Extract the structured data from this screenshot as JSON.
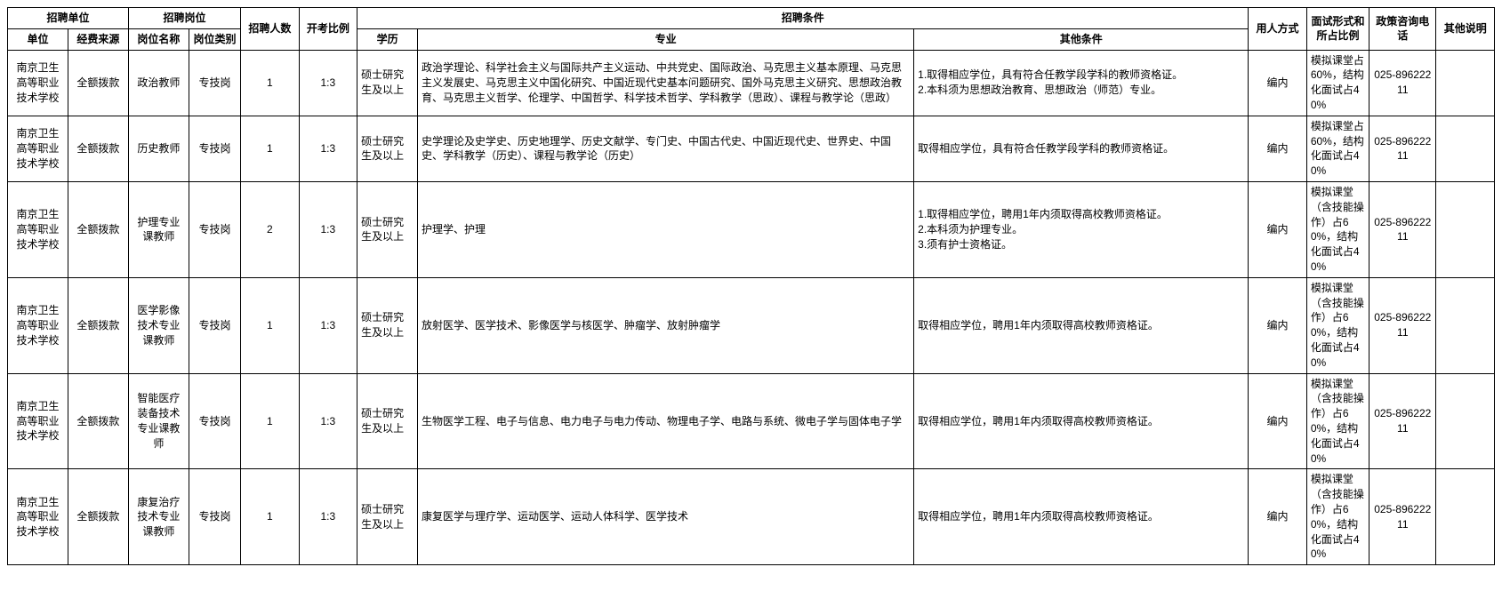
{
  "table": {
    "header": {
      "group_unit": "招聘单位",
      "group_position": "招聘岗位",
      "group_condition": "招聘条件",
      "unit": "单位",
      "funding": "经费来源",
      "position_name": "岗位名称",
      "position_type": "岗位类别",
      "count": "招聘人数",
      "ratio": "开考比例",
      "education": "学历",
      "major": "专业",
      "other_condition": "其他条件",
      "hire_mode": "用人方式",
      "interview": "面试形式和所占比例",
      "phone": "政策咨询电话",
      "remark": "其他说明"
    },
    "rows": [
      {
        "unit": "南京卫生高等职业技术学校",
        "funding": "全额拨款",
        "position_name": "政治教师",
        "position_type": "专技岗",
        "count": "1",
        "ratio": "1:3",
        "education": "硕士研究生及以上",
        "major": "政治学理论、科学社会主义与国际共产主义运动、中共党史、国际政治、马克思主义基本原理、马克思主义发展史、马克思主义中国化研究、中国近现代史基本问题研究、国外马克思主义研究、思想政治教育、马克思主义哲学、伦理学、中国哲学、科学技术哲学、学科教学（思政）、课程与教学论（思政）",
        "other_condition": "1.取得相应学位，具有符合任教学段学科的教师资格证。\n2.本科须为思想政治教育、思想政治（师范）专业。",
        "hire_mode": "编内",
        "interview": "模拟课堂占60%，结构化面试占40%",
        "phone": "025-89622211",
        "remark": ""
      },
      {
        "unit": "南京卫生高等职业技术学校",
        "funding": "全额拨款",
        "position_name": "历史教师",
        "position_type": "专技岗",
        "count": "1",
        "ratio": "1:3",
        "education": "硕士研究生及以上",
        "major": "史学理论及史学史、历史地理学、历史文献学、专门史、中国古代史、中国近现代史、世界史、中国史、学科教学（历史）、课程与教学论（历史）",
        "other_condition": "取得相应学位，具有符合任教学段学科的教师资格证。",
        "hire_mode": "编内",
        "interview": "模拟课堂占60%，结构化面试占40%",
        "phone": "025-89622211",
        "remark": ""
      },
      {
        "unit": "南京卫生高等职业技术学校",
        "funding": "全额拨款",
        "position_name": "护理专业课教师",
        "position_type": "专技岗",
        "count": "2",
        "ratio": "1:3",
        "education": "硕士研究生及以上",
        "major": "护理学、护理",
        "other_condition": "1.取得相应学位，聘用1年内须取得高校教师资格证。\n2.本科须为护理专业。\n3.须有护士资格证。",
        "hire_mode": "编内",
        "interview": "模拟课堂（含技能操作）占60%，结构化面试占40%",
        "phone": "025-89622211",
        "remark": ""
      },
      {
        "unit": "南京卫生高等职业技术学校",
        "funding": "全额拨款",
        "position_name": "医学影像技术专业课教师",
        "position_type": "专技岗",
        "count": "1",
        "ratio": "1:3",
        "education": "硕士研究生及以上",
        "major": "放射医学、医学技术、影像医学与核医学、肿瘤学、放射肿瘤学",
        "other_condition": "取得相应学位，聘用1年内须取得高校教师资格证。",
        "hire_mode": "编内",
        "interview": "模拟课堂（含技能操作）占60%，结构化面试占40%",
        "phone": "025-89622211",
        "remark": ""
      },
      {
        "unit": "南京卫生高等职业技术学校",
        "funding": "全额拨款",
        "position_name": "智能医疗装备技术专业课教师",
        "position_type": "专技岗",
        "count": "1",
        "ratio": "1:3",
        "education": "硕士研究生及以上",
        "major": "生物医学工程、电子与信息、电力电子与电力传动、物理电子学、电路与系统、微电子学与固体电子学",
        "other_condition": "取得相应学位，聘用1年内须取得高校教师资格证。",
        "hire_mode": "编内",
        "interview": "模拟课堂（含技能操作）占60%，结构化面试占40%",
        "phone": "025-89622211",
        "remark": ""
      },
      {
        "unit": "南京卫生高等职业技术学校",
        "funding": "全额拨款",
        "position_name": "康复治疗技术专业课教师",
        "position_type": "专技岗",
        "count": "1",
        "ratio": "1:3",
        "education": "硕士研究生及以上",
        "major": "康复医学与理疗学、运动医学、运动人体科学、医学技术",
        "other_condition": "取得相应学位，聘用1年内须取得高校教师资格证。",
        "hire_mode": "编内",
        "interview": "模拟课堂（含技能操作）占60%，结构化面试占40%",
        "phone": "025-89622211",
        "remark": ""
      }
    ]
  },
  "styling": {
    "border_color": "#000000",
    "background_color": "#ffffff",
    "font_size": 12,
    "header_font_weight": "bold"
  }
}
